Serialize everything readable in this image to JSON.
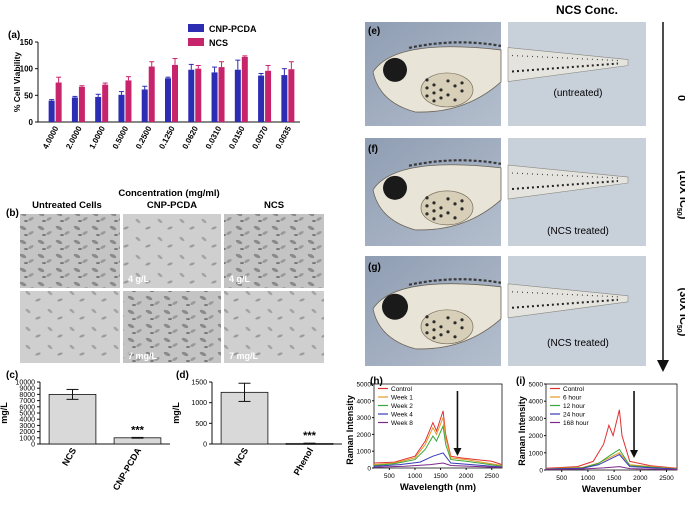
{
  "colors": {
    "cnp": "#2d2db4",
    "ncs": "#c8246c",
    "bar_gray": "#d9d9d9",
    "micro_bg": "#bdbdbd",
    "fish_bg": "#9aa7b8"
  },
  "panel_labels": {
    "a": "(a)",
    "b": "(b)",
    "c": "(c)",
    "d": "(d)",
    "e": "(e)",
    "f": "(f)",
    "g": "(g)",
    "h": "(h)",
    "i": "(i)"
  },
  "panel_b": {
    "headers": [
      "Untreated Cells",
      "CNP-PCDA",
      "NCS"
    ],
    "captions": [
      "4 g/L",
      "4 g/L",
      "7 mg/L",
      "7 mg/L"
    ]
  },
  "zebrafish": {
    "header": "NCS Conc.",
    "labels": [
      "(untreated)",
      "(NCS treated)",
      "(NCS treated)"
    ],
    "conc": [
      "0",
      "(10X IC",
      "(30X IC"
    ],
    "sub": "50",
    "close": ")"
  },
  "chart_data": [
    {
      "id": "a",
      "type": "bar",
      "title": "",
      "ylabel": "% Cell Viability",
      "xlabel": "Concentration (mg/ml)",
      "ylim": [
        0,
        150
      ],
      "yticks": [
        0,
        50,
        100,
        150
      ],
      "categories": [
        "4.0000",
        "2.0000",
        "1.0000",
        "0.5000",
        "0.2500",
        "0.1250",
        "0.0620",
        "0.0310",
        "0.0150",
        "0.0070",
        "0.0035"
      ],
      "series": [
        {
          "name": "CNP-PCDA",
          "values": [
            40,
            46,
            47,
            51,
            61,
            82,
            98,
            93,
            98,
            87,
            88
          ],
          "errors": [
            2,
            2,
            5,
            6,
            6,
            2,
            10,
            10,
            18,
            4,
            12
          ]
        },
        {
          "name": "NCS",
          "values": [
            74,
            66,
            70,
            78,
            104,
            107,
            100,
            103,
            122,
            96,
            99
          ],
          "errors": [
            10,
            2,
            3,
            7,
            9,
            12,
            6,
            10,
            2,
            10,
            14
          ]
        }
      ],
      "legend": "top-right"
    },
    {
      "id": "c",
      "type": "bar",
      "ylabel": "mg/L",
      "ylim": [
        0,
        10000
      ],
      "yticks": [
        0,
        1000,
        2000,
        3000,
        4000,
        5000,
        6000,
        7000,
        8000,
        9000,
        10000
      ],
      "categories": [
        "NCS",
        "CNP-PCDA"
      ],
      "values": [
        8000,
        1000
      ],
      "errors": [
        800,
        60
      ],
      "annotation": "***"
    },
    {
      "id": "d",
      "type": "bar",
      "ylabel": "mg/L",
      "ylim": [
        0,
        1500
      ],
      "yticks": [
        0,
        500,
        1000,
        1500
      ],
      "categories": [
        "NCS",
        "Phenol"
      ],
      "values": [
        1250,
        15
      ],
      "errors": [
        220,
        5
      ],
      "annotation": "***"
    },
    {
      "id": "h",
      "type": "line",
      "ylabel": "Raman Intensity",
      "xlabel": "Wavelength (nm)",
      "xlim": [
        200,
        2700
      ],
      "ylim": [
        0,
        5000
      ],
      "xticks": [
        500,
        1000,
        1500,
        2000,
        2500
      ],
      "yticks": [
        0,
        1000,
        2000,
        3000,
        4000,
        5000
      ],
      "legend": "top-left",
      "series": [
        {
          "name": "Control",
          "color": "#e03030",
          "pts": [
            [
              200,
              300
            ],
            [
              600,
              350
            ],
            [
              1000,
              700
            ],
            [
              1200,
              1600
            ],
            [
              1350,
              2700
            ],
            [
              1420,
              2200
            ],
            [
              1550,
              3400
            ],
            [
              1600,
              2000
            ],
            [
              1700,
              700
            ],
            [
              1900,
              600
            ],
            [
              2200,
              500
            ],
            [
              2500,
              400
            ],
            [
              2700,
              200
            ]
          ]
        },
        {
          "name": "Week 1",
          "color": "#e59a2b",
          "pts": [
            [
              200,
              200
            ],
            [
              600,
              300
            ],
            [
              1000,
              600
            ],
            [
              1200,
              1400
            ],
            [
              1350,
              2400
            ],
            [
              1420,
              2000
            ],
            [
              1550,
              3000
            ],
            [
              1600,
              1800
            ],
            [
              1700,
              600
            ],
            [
              2000,
              500
            ],
            [
              2700,
              150
            ]
          ]
        },
        {
          "name": "Week 2",
          "color": "#3aa83a",
          "pts": [
            [
              200,
              150
            ],
            [
              600,
              250
            ],
            [
              1000,
              500
            ],
            [
              1200,
              1100
            ],
            [
              1350,
              1900
            ],
            [
              1420,
              1600
            ],
            [
              1550,
              2500
            ],
            [
              1600,
              1400
            ],
            [
              1700,
              500
            ],
            [
              2000,
              400
            ],
            [
              2700,
              100
            ]
          ]
        },
        {
          "name": "Week 4",
          "color": "#3a3ab8",
          "pts": [
            [
              200,
              100
            ],
            [
              700,
              200
            ],
            [
              1100,
              350
            ],
            [
              1350,
              700
            ],
            [
              1550,
              900
            ],
            [
              1700,
              300
            ],
            [
              2700,
              60
            ]
          ]
        },
        {
          "name": "Week 8",
          "color": "#7a2a8a",
          "pts": [
            [
              200,
              50
            ],
            [
              800,
              100
            ],
            [
              1300,
              200
            ],
            [
              1550,
              300
            ],
            [
              1700,
              150
            ],
            [
              2700,
              30
            ]
          ]
        }
      ],
      "arrow_x": 1830
    },
    {
      "id": "i",
      "type": "line",
      "ylabel": "Raman Intensity",
      "xlabel": "Wavenumber",
      "xlim": [
        200,
        2700
      ],
      "ylim": [
        0,
        5000
      ],
      "xticks": [
        500,
        1000,
        1500,
        2000,
        2500
      ],
      "yticks": [
        0,
        1000,
        2000,
        3000,
        4000,
        5000
      ],
      "legend": "top-left",
      "series": [
        {
          "name": "Control",
          "color": "#e03030",
          "pts": [
            [
              200,
              100
            ],
            [
              800,
              200
            ],
            [
              1100,
              500
            ],
            [
              1300,
              1500
            ],
            [
              1400,
              2600
            ],
            [
              1480,
              2000
            ],
            [
              1600,
              3500
            ],
            [
              1650,
              2000
            ],
            [
              1800,
              500
            ],
            [
              2200,
              250
            ],
            [
              2700,
              100
            ]
          ]
        },
        {
          "name": "6 hour",
          "color": "#e59a2b",
          "pts": [
            [
              200,
              80
            ],
            [
              900,
              150
            ],
            [
              1200,
              400
            ],
            [
              1400,
              700
            ],
            [
              1600,
              1000
            ],
            [
              1800,
              300
            ],
            [
              2700,
              80
            ]
          ]
        },
        {
          "name": "12 hour",
          "color": "#3aa83a",
          "pts": [
            [
              200,
              60
            ],
            [
              900,
              120
            ],
            [
              1200,
              380
            ],
            [
              1400,
              800
            ],
            [
              1600,
              1200
            ],
            [
              1800,
              250
            ],
            [
              2700,
              60
            ]
          ]
        },
        {
          "name": "24 hour",
          "color": "#3a3ab8",
          "pts": [
            [
              200,
              50
            ],
            [
              900,
              100
            ],
            [
              1200,
              300
            ],
            [
              1400,
              600
            ],
            [
              1600,
              900
            ],
            [
              1800,
              200
            ],
            [
              2700,
              50
            ]
          ]
        },
        {
          "name": "168 hour",
          "color": "#7a2a8a",
          "pts": [
            [
              200,
              30
            ],
            [
              900,
              60
            ],
            [
              1300,
              120
            ],
            [
              1600,
              200
            ],
            [
              1800,
              80
            ],
            [
              2700,
              30
            ]
          ]
        }
      ],
      "arrow_x": 1880
    }
  ]
}
